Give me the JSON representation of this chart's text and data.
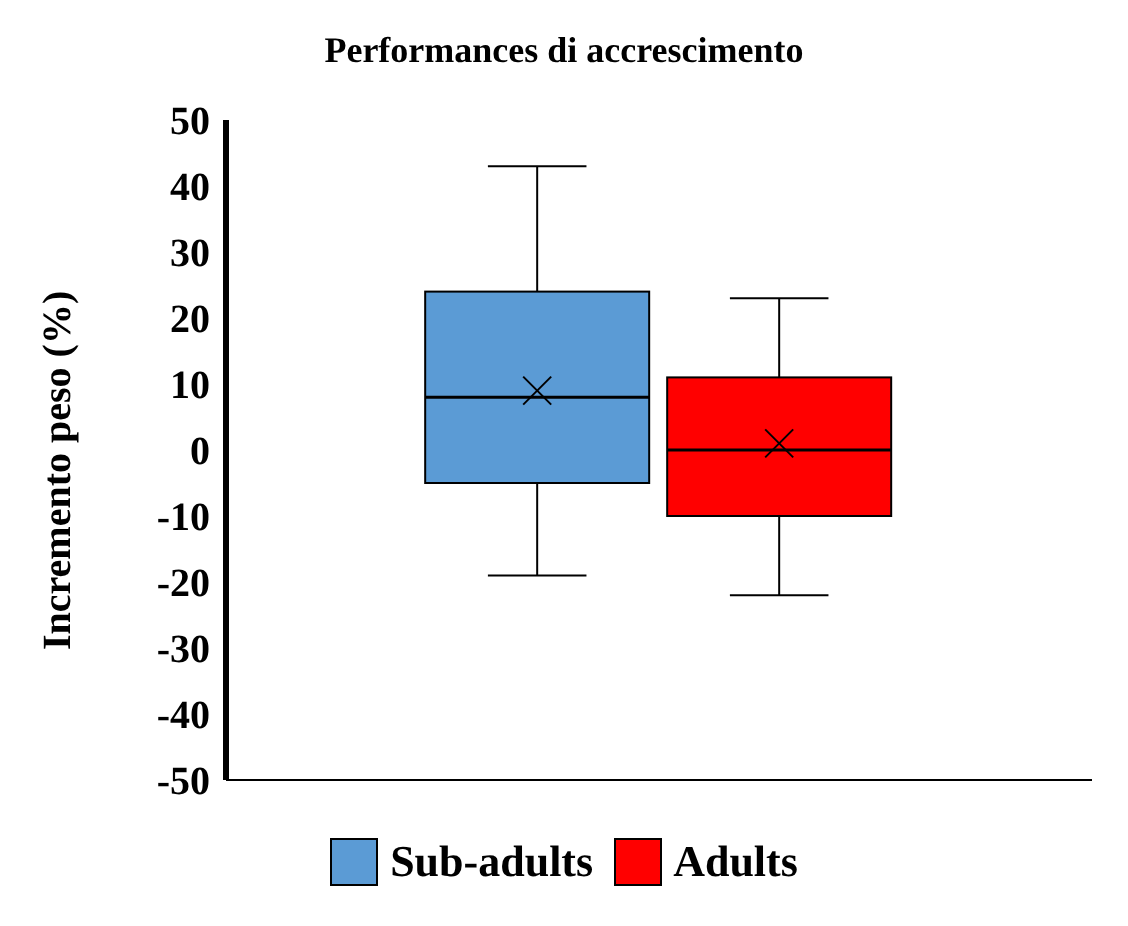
{
  "chart_data": {
    "type": "box",
    "title": "Performances di accrescimento",
    "ylabel": "Incremento peso  (%)",
    "categories": [
      null
    ],
    "series": [
      {
        "name": "Sub-adults",
        "color": "#5b9bd5",
        "boxes": [
          {
            "low": -19,
            "q1": -5,
            "median": 8,
            "q3": 24,
            "high": 43,
            "mean": 9
          }
        ]
      },
      {
        "name": "Adults",
        "color": "#ff0000",
        "boxes": [
          {
            "low": -22,
            "q1": -10,
            "median": 0,
            "q3": 11,
            "high": 23,
            "mean": 1
          }
        ]
      }
    ],
    "ylim": [
      -50,
      50
    ],
    "yticks": [
      -50,
      -40,
      -30,
      -20,
      -10,
      0,
      10,
      20,
      30,
      40,
      50
    ],
    "grid": false,
    "legend": "bottom"
  }
}
